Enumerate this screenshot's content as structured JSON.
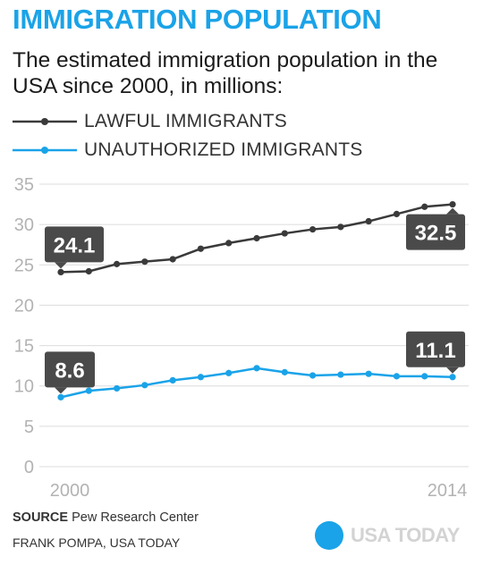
{
  "header": {
    "title": "IMMIGRATION POPULATION",
    "subtitle": "The estimated immigration population in the USA since 2000, in millions:"
  },
  "colors": {
    "title": "#1aa3e8",
    "lawful": "#3a3a3a",
    "unauthorized": "#1aa3e8",
    "callout": "#4a4a4a",
    "grid": "#dcdcdc",
    "axis_text": "#b3b3b3"
  },
  "legend": [
    {
      "label": "LAWFUL IMMIGRANTS",
      "color": "#3a3a3a"
    },
    {
      "label": "UNAUTHORIZED IMMIGRANTS",
      "color": "#1aa3e8"
    }
  ],
  "chart_data": {
    "type": "line",
    "title": "IMMIGRATION POPULATION",
    "subtitle": "The estimated immigration population in the USA since 2000, in millions:",
    "x": [
      2000,
      2001,
      2002,
      2003,
      2004,
      2005,
      2006,
      2007,
      2008,
      2009,
      2010,
      2011,
      2012,
      2013,
      2014
    ],
    "x_tick_labels": [
      "2000",
      "2014"
    ],
    "y_ticks": [
      0,
      5,
      10,
      15,
      20,
      25,
      30,
      35
    ],
    "ylim": [
      0,
      35
    ],
    "xlabel": "",
    "ylabel": "",
    "grid": true,
    "legend_position": "top-left",
    "series": [
      {
        "name": "LAWFUL IMMIGRANTS",
        "color": "#3a3a3a",
        "values": [
          24.1,
          24.2,
          25.1,
          25.4,
          25.7,
          27.0,
          27.7,
          28.3,
          28.9,
          29.4,
          29.7,
          30.4,
          31.3,
          32.2,
          32.5
        ]
      },
      {
        "name": "UNAUTHORIZED IMMIGRANTS",
        "color": "#1aa3e8",
        "values": [
          8.6,
          9.4,
          9.7,
          10.1,
          10.7,
          11.1,
          11.6,
          12.2,
          11.7,
          11.3,
          11.4,
          11.5,
          11.2,
          11.2,
          11.1
        ]
      }
    ],
    "annotations": [
      {
        "text": "24.1",
        "series": 0,
        "index": 0,
        "placement": "above-right"
      },
      {
        "text": "32.5",
        "series": 0,
        "index": 14,
        "placement": "below-left"
      },
      {
        "text": "8.6",
        "series": 1,
        "index": 0,
        "placement": "above-right"
      },
      {
        "text": "11.1",
        "series": 1,
        "index": 14,
        "placement": "above-left"
      }
    ]
  },
  "footer": {
    "source_label": "SOURCE",
    "source_text": "Pew Research Center",
    "credit": "FRANK POMPA, USA TODAY",
    "brand": "USA TODAY"
  }
}
